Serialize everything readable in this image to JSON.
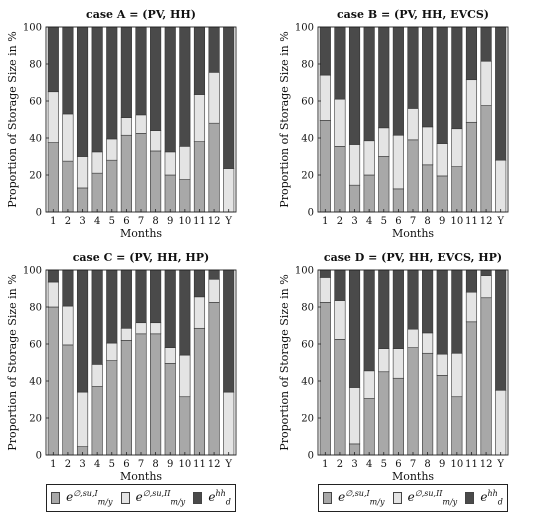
{
  "colors": {
    "I": "#a8a8a8",
    "II": "#e4e4e4",
    "d": "#4a4a4a",
    "axis": "#222222"
  },
  "y_axis_label": "Proportion of Storage Size in %",
  "x_axis_label": "Months",
  "legend": {
    "item_I": {
      "base": "e",
      "sup": "∅,su,I",
      "sub": "m/y"
    },
    "item_II": {
      "base": "e",
      "sup": "∅,su,II",
      "sub": "m/y"
    },
    "item_d": {
      "base": "e",
      "sup": "hh",
      "sub": "d"
    }
  },
  "chart_data": [
    {
      "type": "bar",
      "title": "case A = (PV, HH)",
      "categories": [
        "1",
        "2",
        "3",
        "4",
        "5",
        "6",
        "7",
        "8",
        "9",
        "10",
        "11",
        "12",
        "Y"
      ],
      "ylim": [
        0,
        100
      ],
      "yticks": [
        0,
        20,
        40,
        60,
        80,
        100
      ],
      "series": [
        {
          "name": "e_m/y^∅,su,I",
          "values": [
            37.5,
            27.5,
            13,
            21,
            28,
            41.5,
            42.5,
            33,
            20,
            17.5,
            38,
            48,
            0
          ]
        },
        {
          "name": "e_m/y^∅,su,II",
          "values": [
            27.5,
            25.5,
            17,
            11.5,
            11.5,
            9.5,
            10,
            11,
            12.5,
            18,
            25.5,
            27.5,
            23.5
          ]
        },
        {
          "name": "e_d^hh",
          "values": [
            35,
            47,
            70,
            67.5,
            60.5,
            49,
            47.5,
            56,
            67.5,
            64.5,
            36.5,
            24.5,
            76.5
          ]
        }
      ]
    },
    {
      "type": "bar",
      "title": "case B = (PV, HH, EVCS)",
      "categories": [
        "1",
        "2",
        "3",
        "4",
        "5",
        "6",
        "7",
        "8",
        "9",
        "10",
        "11",
        "12",
        "Y"
      ],
      "ylim": [
        0,
        100
      ],
      "yticks": [
        0,
        20,
        40,
        60,
        80,
        100
      ],
      "series": [
        {
          "name": "e_m/y^∅,su,I",
          "values": [
            49.5,
            35.5,
            14.5,
            20,
            30,
            12.5,
            39,
            25.5,
            19.5,
            24.5,
            48.5,
            57.5,
            0
          ]
        },
        {
          "name": "e_m/y^∅,su,II",
          "values": [
            24.5,
            25.5,
            22,
            18.5,
            15.5,
            29,
            17,
            20.5,
            17.5,
            20.5,
            23,
            24,
            28
          ]
        },
        {
          "name": "e_d^hh",
          "values": [
            26,
            39,
            63.5,
            61.5,
            54.5,
            58.5,
            44,
            54,
            63,
            55,
            28.5,
            18.5,
            72
          ]
        }
      ]
    },
    {
      "type": "bar",
      "title": "case C = (PV, HH, HP)",
      "categories": [
        "1",
        "2",
        "3",
        "4",
        "5",
        "6",
        "7",
        "8",
        "9",
        "10",
        "11",
        "12",
        "Y"
      ],
      "ylim": [
        0,
        100
      ],
      "yticks": [
        0,
        20,
        40,
        60,
        80,
        100
      ],
      "series": [
        {
          "name": "e_m/y^∅,su,I",
          "values": [
            80,
            59.5,
            4.5,
            37,
            51,
            62,
            65.5,
            65.5,
            49.5,
            31.5,
            68.5,
            82.5,
            0
          ]
        },
        {
          "name": "e_m/y^∅,su,II",
          "values": [
            13.5,
            21,
            29.5,
            12,
            9.5,
            6.5,
            6,
            6,
            8.5,
            22.5,
            17,
            12.5,
            34
          ]
        },
        {
          "name": "e_d^hh",
          "values": [
            6.5,
            19.5,
            66,
            51,
            39.5,
            31.5,
            28.5,
            28.5,
            42,
            46,
            14.5,
            5,
            66
          ]
        }
      ]
    },
    {
      "type": "bar",
      "title": "case D = (PV, HH, EVCS, HP)",
      "categories": [
        "1",
        "2",
        "3",
        "4",
        "5",
        "6",
        "7",
        "8",
        "9",
        "10",
        "11",
        "12",
        "Y"
      ],
      "ylim": [
        0,
        100
      ],
      "yticks": [
        0,
        20,
        40,
        60,
        80,
        100
      ],
      "series": [
        {
          "name": "e_m/y^∅,su,I",
          "values": [
            82.5,
            62.5,
            6,
            30.5,
            45,
            41.5,
            58,
            55,
            43,
            31.5,
            72,
            85,
            0
          ]
        },
        {
          "name": "e_m/y^∅,su,II",
          "values": [
            13.5,
            21,
            30.5,
            15,
            12.5,
            16,
            10,
            11,
            11.5,
            23.5,
            16,
            12,
            35
          ]
        },
        {
          "name": "e_d^hh",
          "values": [
            4,
            16.5,
            63.5,
            54.5,
            42.5,
            42.5,
            32,
            34,
            45.5,
            45,
            12,
            3,
            65
          ]
        }
      ]
    }
  ]
}
